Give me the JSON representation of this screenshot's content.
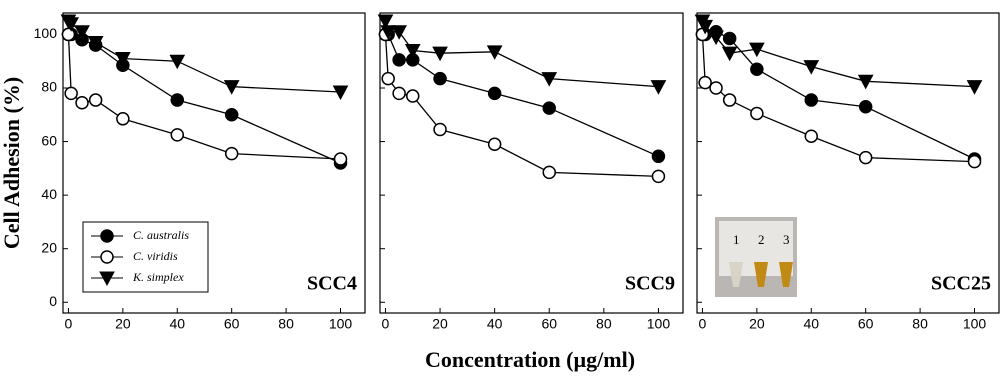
{
  "chart_data": [
    {
      "type": "line",
      "title": "SCC4",
      "ylabel": "Cell Adhesion (%)",
      "xlabel": "Concentration (µg/ml)",
      "x": [
        0,
        1,
        5,
        10,
        20,
        40,
        60,
        100
      ],
      "xlim": [
        -2,
        109
      ],
      "xticks": [
        0,
        20,
        40,
        60,
        80,
        100
      ],
      "ylim": [
        -4,
        108
      ],
      "yticks": [
        0,
        20,
        40,
        60,
        80,
        100
      ],
      "legend": "lower left",
      "series": [
        {
          "name": "C. australis",
          "color": "#000000",
          "marker": "circle-filled",
          "values": [
            100,
            100,
            98,
            96,
            88.5,
            75.5,
            70,
            52
          ]
        },
        {
          "name": "C. viridis",
          "color": "#000000",
          "marker": "circle-open",
          "values": [
            100,
            78,
            74.5,
            75.5,
            68.5,
            62.5,
            55.5,
            53.5
          ]
        },
        {
          "name": "K. simplex",
          "color": "#000000",
          "marker": "triangle-down",
          "values": [
            105,
            104,
            101,
            97,
            91,
            90,
            80.5,
            78.5
          ]
        }
      ]
    },
    {
      "type": "line",
      "title": "SCC9",
      "x": [
        0,
        1,
        5,
        10,
        20,
        40,
        60,
        100
      ],
      "xlim": [
        -2,
        109
      ],
      "xticks": [
        0,
        20,
        40,
        60,
        80,
        100
      ],
      "ylim": [
        -4,
        108
      ],
      "series": [
        {
          "name": "C. australis",
          "color": "#000000",
          "marker": "circle-filled",
          "values": [
            100,
            100,
            90.5,
            90.5,
            83.5,
            78,
            72.5,
            54.5
          ]
        },
        {
          "name": "C. viridis",
          "color": "#000000",
          "marker": "circle-open",
          "values": [
            100,
            83.5,
            78,
            77,
            64.5,
            59,
            48.5,
            47
          ]
        },
        {
          "name": "K. simplex",
          "color": "#000000",
          "marker": "triangle-down",
          "values": [
            105,
            101,
            101,
            94,
            93,
            93.5,
            83.5,
            80.5
          ]
        }
      ]
    },
    {
      "type": "line",
      "title": "SCC25",
      "x": [
        0,
        1,
        5,
        10,
        20,
        40,
        60,
        100
      ],
      "xlim": [
        -2,
        109
      ],
      "xticks": [
        0,
        20,
        40,
        60,
        80,
        100
      ],
      "ylim": [
        -4,
        108
      ],
      "inset_labels": [
        "1",
        "2",
        "3"
      ],
      "series": [
        {
          "name": "C. australis",
          "color": "#000000",
          "marker": "circle-filled",
          "values": [
            100,
            100,
            101,
            98.5,
            87,
            75.5,
            73,
            53.5
          ]
        },
        {
          "name": "C. viridis",
          "color": "#000000",
          "marker": "circle-open",
          "values": [
            100,
            82,
            80,
            75.5,
            70.5,
            62,
            54,
            52.5
          ]
        },
        {
          "name": "K. simplex",
          "color": "#000000",
          "marker": "triangle-down",
          "values": [
            105,
            103,
            99,
            93,
            94.5,
            88,
            82.5,
            80.5
          ]
        }
      ]
    }
  ]
}
